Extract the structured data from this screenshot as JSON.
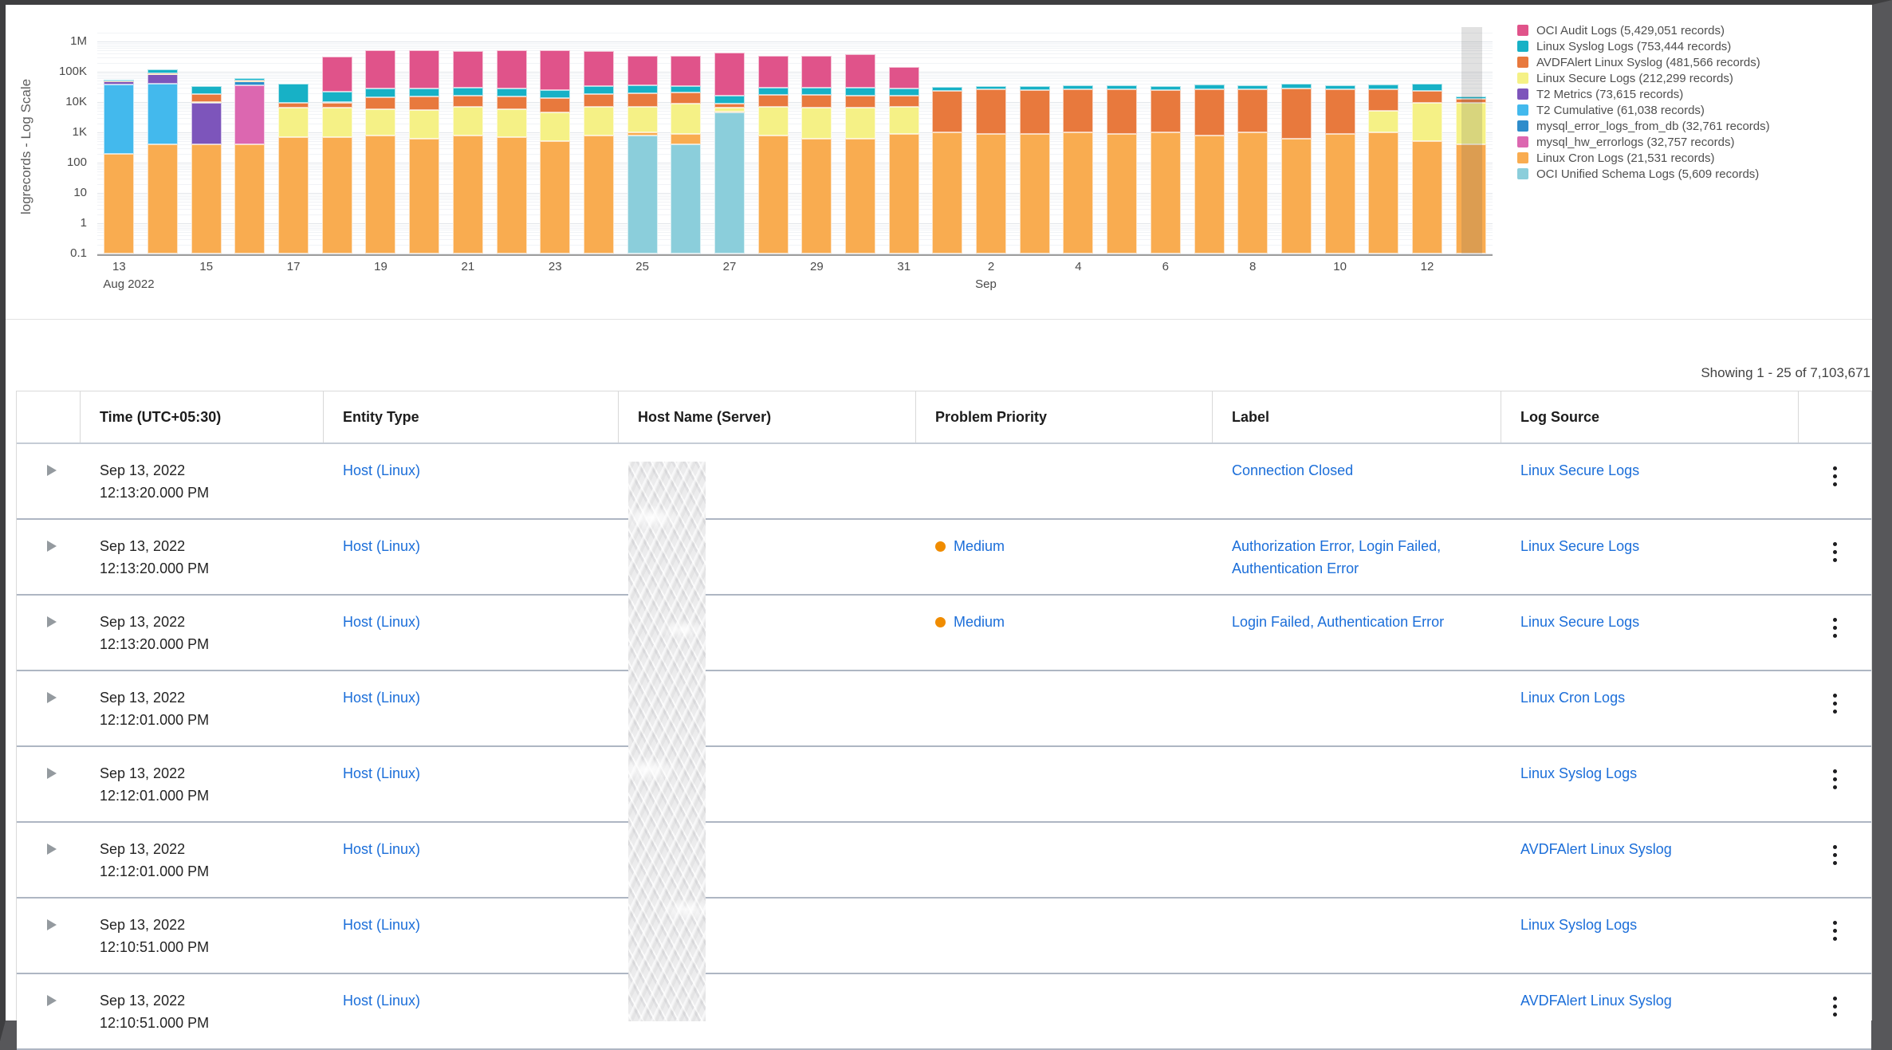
{
  "colors": {
    "link": "#1B6ED9",
    "priority_medium_dot": "#F08C00"
  },
  "chart_data": {
    "type": "bar",
    "stacked": true,
    "log_scale": true,
    "title": "",
    "xlabel": "",
    "ylabel": "logrecords - Log Scale",
    "ylim": [
      0.1,
      1000000
    ],
    "y_ticks": [
      "1M",
      "100K",
      "10K",
      "1K",
      "100",
      "10",
      "1",
      "0.1"
    ],
    "grid": true,
    "legend_position": "right",
    "categories": [
      "Aug 13",
      "Aug 14",
      "Aug 15",
      "Aug 16",
      "Aug 17",
      "Aug 18",
      "Aug 19",
      "Aug 20",
      "Aug 21",
      "Aug 22",
      "Aug 23",
      "Aug 24",
      "Aug 25",
      "Aug 26",
      "Aug 27",
      "Aug 28",
      "Aug 29",
      "Aug 30",
      "Aug 31",
      "Sep 1",
      "Sep 2",
      "Sep 3",
      "Sep 4",
      "Sep 5",
      "Sep 6",
      "Sep 7",
      "Sep 8",
      "Sep 9",
      "Sep 10",
      "Sep 11",
      "Sep 12",
      "Sep 13"
    ],
    "x_tick_labels": [
      {
        "index": 0,
        "label": "13",
        "sub": "Aug 2022"
      },
      {
        "index": 2,
        "label": "15"
      },
      {
        "index": 4,
        "label": "17"
      },
      {
        "index": 6,
        "label": "19"
      },
      {
        "index": 8,
        "label": "21"
      },
      {
        "index": 10,
        "label": "23"
      },
      {
        "index": 12,
        "label": "25"
      },
      {
        "index": 14,
        "label": "27"
      },
      {
        "index": 16,
        "label": "29"
      },
      {
        "index": 18,
        "label": "31"
      },
      {
        "index": 20,
        "label": "2",
        "sub": "Sep"
      },
      {
        "index": 22,
        "label": "4"
      },
      {
        "index": 24,
        "label": "6"
      },
      {
        "index": 26,
        "label": "8"
      },
      {
        "index": 28,
        "label": "10"
      },
      {
        "index": 30,
        "label": "12"
      }
    ],
    "series": [
      {
        "name": "OCI Audit Logs",
        "legend_label": "OCI Audit Logs (5,429,051 records)",
        "color": "#E0538A",
        "values": [
          0,
          0,
          0,
          0,
          0,
          300000,
          500000,
          500000,
          450000,
          500000,
          500000,
          450000,
          300000,
          300000,
          400000,
          300000,
          300000,
          350000,
          120000,
          0,
          0,
          0,
          0,
          0,
          0,
          0,
          0,
          0,
          0,
          0,
          0,
          0
        ]
      },
      {
        "name": "Linux Syslog Logs",
        "legend_label": "Linux Syslog Logs (753,444 records)",
        "color": "#17B1C6",
        "values": [
          4000,
          30000,
          15000,
          8000,
          30000,
          12000,
          14000,
          13000,
          14000,
          13000,
          12000,
          15000,
          15000,
          12000,
          8000,
          13000,
          12000,
          13000,
          12000,
          9000,
          8000,
          9000,
          8000,
          9000,
          8000,
          10000,
          9000,
          11000,
          8000,
          10000,
          16000,
          3000
        ]
      },
      {
        "name": "AVDFAlert Linux Syslog",
        "legend_label": "AVDFAlert Linux Syslog (481,566 records)",
        "color": "#E8793D",
        "values": [
          2000,
          3000,
          8000,
          3000,
          2500,
          3000,
          9000,
          10000,
          9000,
          10000,
          9000,
          12000,
          13000,
          12000,
          2000,
          10000,
          11000,
          10000,
          9000,
          22000,
          25000,
          24000,
          26000,
          25000,
          24000,
          26000,
          25000,
          28000,
          26000,
          22000,
          14000,
          3000
        ]
      },
      {
        "name": "Linux Secure Logs",
        "legend_label": "Linux Secure Logs (212,299 records)",
        "color": "#F5F186",
        "values": [
          0,
          300,
          800,
          1500,
          6000,
          6000,
          5000,
          5000,
          6000,
          5000,
          4000,
          6000,
          6000,
          8000,
          2000,
          6000,
          6000,
          6000,
          6000,
          0,
          0,
          0,
          0,
          0,
          0,
          0,
          0,
          0,
          0,
          4000,
          9000,
          9000
        ]
      },
      {
        "name": "T2 Metrics",
        "legend_label": "T2 Metrics (73,615 records)",
        "color": "#7D55BB",
        "values": [
          9000,
          45000,
          9000,
          0,
          0,
          0,
          0,
          0,
          0,
          0,
          0,
          0,
          0,
          0,
          0,
          0,
          0,
          0,
          0,
          0,
          0,
          0,
          0,
          0,
          0,
          0,
          0,
          0,
          0,
          0,
          0,
          0
        ]
      },
      {
        "name": "T2 Cumulative",
        "legend_label": "T2 Cumulative (61,038 records)",
        "color": "#43B9ED",
        "values": [
          38000,
          40000,
          0,
          0,
          0,
          0,
          0,
          0,
          0,
          0,
          0,
          0,
          0,
          0,
          0,
          0,
          0,
          0,
          0,
          0,
          0,
          0,
          0,
          0,
          0,
          0,
          0,
          0,
          0,
          0,
          0,
          0
        ]
      },
      {
        "name": "mysql_error_logs_from_db",
        "legend_label": "mysql_error_logs_from_db (32,761 records)",
        "color": "#2E8CCB",
        "values": [
          0,
          0,
          0,
          12000,
          0,
          0,
          0,
          0,
          0,
          0,
          0,
          0,
          0,
          0,
          0,
          0,
          0,
          0,
          0,
          0,
          0,
          0,
          0,
          0,
          0,
          0,
          0,
          0,
          0,
          0,
          0,
          0
        ]
      },
      {
        "name": "mysql_hw_errorlogs",
        "legend_label": "mysql_hw_errorlogs (32,757 records)",
        "color": "#DC67B0",
        "values": [
          0,
          0,
          0,
          35000,
          0,
          0,
          0,
          0,
          0,
          0,
          0,
          0,
          0,
          0,
          0,
          0,
          0,
          0,
          0,
          0,
          0,
          0,
          0,
          0,
          0,
          0,
          0,
          0,
          0,
          0,
          0,
          0
        ]
      },
      {
        "name": "Linux Cron Logs",
        "legend_label": "Linux Cron Logs (21,531 records)",
        "color": "#F9AC50",
        "values": [
          200,
          400,
          400,
          400,
          700,
          700,
          800,
          600,
          800,
          700,
          500,
          800,
          200,
          500,
          200,
          800,
          600,
          600,
          900,
          1000,
          900,
          900,
          1000,
          900,
          1000,
          800,
          1000,
          600,
          900,
          1000,
          500,
          400
        ]
      },
      {
        "name": "OCI Unified Schema Logs",
        "legend_label": "OCI Unified Schema Logs (5,609 records)",
        "color": "#8BCEDB",
        "values": [
          0,
          0,
          0,
          0,
          0,
          0,
          0,
          0,
          0,
          0,
          0,
          0,
          800,
          400,
          4500,
          0,
          0,
          0,
          0,
          0,
          0,
          0,
          0,
          0,
          0,
          0,
          0,
          0,
          0,
          0,
          0,
          0
        ]
      }
    ]
  },
  "table": {
    "showing": "Showing 1 - 25 of 7,103,671",
    "columns": [
      "",
      "Time (UTC+05:30)",
      "Entity Type",
      "Host Name (Server)",
      "Problem Priority",
      "Label",
      "Log Source",
      ""
    ],
    "rows": [
      {
        "date": "Sep 13, 2022",
        "time": "12:13:20.000 PM",
        "entity": "Host (Linux)",
        "priority": "",
        "label": "Connection Closed",
        "source": "Linux Secure Logs"
      },
      {
        "date": "Sep 13, 2022",
        "time": "12:13:20.000 PM",
        "entity": "Host (Linux)",
        "priority": "Medium",
        "label": "Authorization Error, Login Failed, Authentication Error",
        "source": "Linux Secure Logs"
      },
      {
        "date": "Sep 13, 2022",
        "time": "12:13:20.000 PM",
        "entity": "Host (Linux)",
        "priority": "Medium",
        "label": "Login Failed, Authentication Error",
        "source": "Linux Secure Logs"
      },
      {
        "date": "Sep 13, 2022",
        "time": "12:12:01.000 PM",
        "entity": "Host (Linux)",
        "priority": "",
        "label": "",
        "source": "Linux Cron Logs"
      },
      {
        "date": "Sep 13, 2022",
        "time": "12:12:01.000 PM",
        "entity": "Host (Linux)",
        "priority": "",
        "label": "",
        "source": "Linux Syslog Logs"
      },
      {
        "date": "Sep 13, 2022",
        "time": "12:12:01.000 PM",
        "entity": "Host (Linux)",
        "priority": "",
        "label": "",
        "source": "AVDFAlert Linux Syslog"
      },
      {
        "date": "Sep 13, 2022",
        "time": "12:10:51.000 PM",
        "entity": "Host (Linux)",
        "priority": "",
        "label": "",
        "source": "Linux Syslog Logs"
      },
      {
        "date": "Sep 13, 2022",
        "time": "12:10:51.000 PM",
        "entity": "Host (Linux)",
        "priority": "",
        "label": "",
        "source": "AVDFAlert Linux Syslog"
      }
    ]
  }
}
